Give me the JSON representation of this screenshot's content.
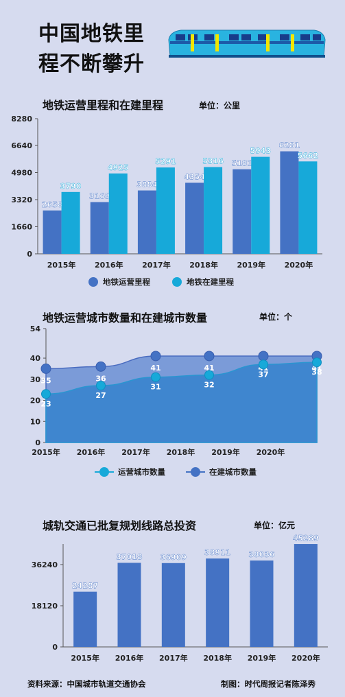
{
  "header": {
    "title_line1": "中国地铁里",
    "title_line2": "程不断攀升"
  },
  "colors": {
    "background": "#d6dbef",
    "dark_blue": "#4472c4",
    "cyan": "#17a9d9",
    "area_light": "#5b9bd5"
  },
  "icons": [
    "train-icon"
  ],
  "footer": {
    "source": "资料来源：中国城市轨道交通协会",
    "author": "制图：时代周报记者陈泽秀"
  },
  "chart_data": [
    {
      "type": "bar",
      "title": "地铁运营里程和在建里程",
      "unit": "单位：公里",
      "categories": [
        "2015年",
        "2016年",
        "2017年",
        "2018年",
        "2019年",
        "2020年"
      ],
      "yticks": [
        "0",
        "1660",
        "3320",
        "4980",
        "6640",
        "8280"
      ],
      "ylim": [
        0,
        8280
      ],
      "legend_position": "bottom",
      "series": [
        {
          "name": "地铁运营里程",
          "values": [
            2658,
            3169,
            3884,
            4354,
            5181,
            6281
          ],
          "color": "#4472c4"
        },
        {
          "name": "地铁在建里程",
          "values": [
            3790,
            4925,
            5291,
            5316,
            5943,
            5662
          ],
          "color": "#17a9d9"
        }
      ]
    },
    {
      "type": "area",
      "title": "地铁运营城市数量和在建城市数量",
      "unit": "单位：个",
      "categories": [
        "2015年",
        "2016年",
        "2017年",
        "2018年",
        "2019年",
        "2020年"
      ],
      "yticks": [
        "0",
        "10",
        "20",
        "30",
        "40",
        "54"
      ],
      "ylim": [
        0,
        54
      ],
      "legend_position": "bottom",
      "series": [
        {
          "name": "运营城市数量",
          "values": [
            23,
            27,
            31,
            32,
            37,
            38
          ],
          "color": "#17a9d9"
        },
        {
          "name": "在建城市数量",
          "values": [
            35,
            36,
            41,
            41,
            41,
            41
          ],
          "color": "#4472c4"
        }
      ]
    },
    {
      "type": "bar",
      "title": "城轨交通已批复规划线路总投资",
      "unit": "单位：亿元",
      "categories": [
        "2015年",
        "2016年",
        "2017年",
        "2018年",
        "2019年",
        "2020年"
      ],
      "yticks": [
        "0",
        "18120",
        "36240"
      ],
      "ylim": [
        0,
        45300
      ],
      "series": [
        {
          "values": [
            24287,
            37018,
            36909,
            38911,
            38036,
            45289
          ],
          "color": "#4472c4"
        }
      ]
    }
  ]
}
